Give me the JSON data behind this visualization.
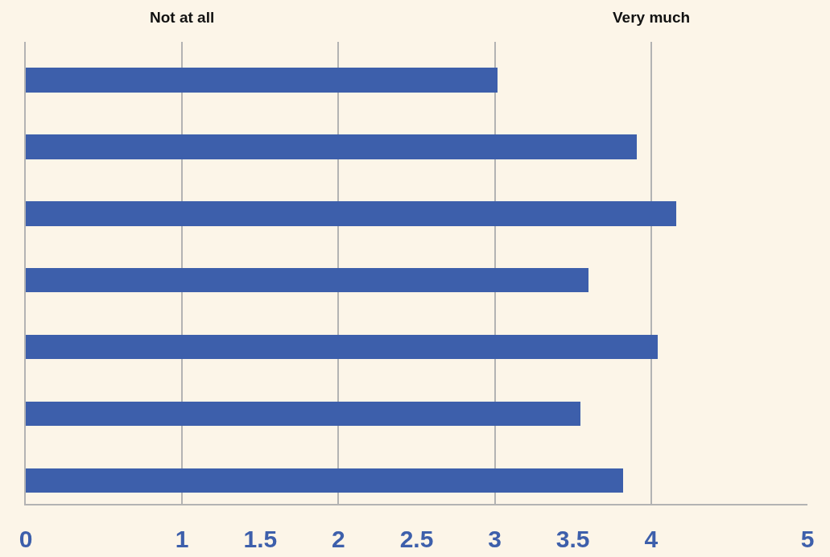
{
  "chart_data": {
    "type": "bar",
    "orientation": "horizontal",
    "categories": [
      null,
      null,
      null,
      null,
      null,
      null,
      null
    ],
    "values": [
      3.02,
      3.91,
      4.16,
      3.6,
      4.04,
      3.55,
      3.82
    ],
    "color": "#3d5fab",
    "xlim": [
      0,
      5
    ],
    "xticks": [
      0,
      1,
      1.5,
      2,
      2.5,
      3,
      3.5,
      4,
      5
    ],
    "annotations": [
      "Not at all",
      "Very much"
    ],
    "grid": "x"
  }
}
